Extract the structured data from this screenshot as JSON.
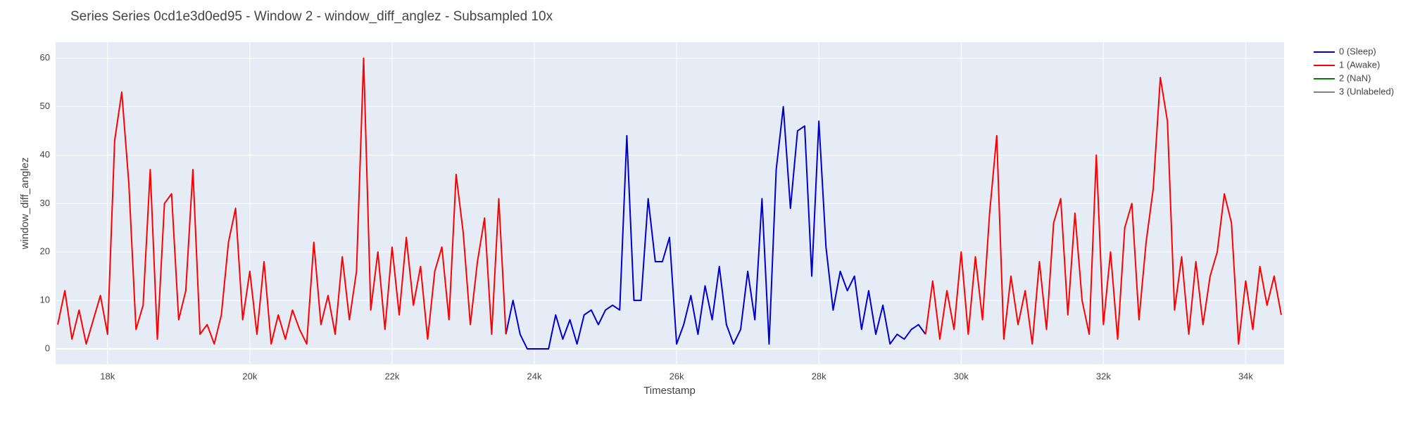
{
  "chart_data": {
    "type": "line",
    "title": "Series Series 0cd1e3d0ed95 - Window 2 - window_diff_anglez - Subsampled 10x",
    "xlabel": "Timestamp",
    "ylabel": "window_diff_anglez",
    "x": [
      17300,
      17400,
      17500,
      17600,
      17700,
      17800,
      17900,
      18000,
      18100,
      18200,
      18300,
      18400,
      18500,
      18600,
      18700,
      18800,
      18900,
      19000,
      19100,
      19200,
      19300,
      19400,
      19500,
      19600,
      19700,
      19800,
      19900,
      20000,
      20100,
      20200,
      20300,
      20400,
      20500,
      20600,
      20700,
      20800,
      20900,
      21000,
      21100,
      21200,
      21300,
      21400,
      21500,
      21600,
      21700,
      21800,
      21900,
      22000,
      22100,
      22200,
      22300,
      22400,
      22500,
      22600,
      22700,
      22800,
      22900,
      23000,
      23100,
      23200,
      23300,
      23400,
      23500,
      23600,
      23700,
      23800,
      23900,
      24000,
      24100,
      24200,
      24300,
      24400,
      24500,
      24600,
      24700,
      24800,
      24900,
      25000,
      25100,
      25200,
      25300,
      25400,
      25500,
      25600,
      25700,
      25800,
      25900,
      26000,
      26100,
      26200,
      26300,
      26400,
      26500,
      26600,
      26700,
      26800,
      26900,
      27000,
      27100,
      27200,
      27300,
      27400,
      27500,
      27600,
      27700,
      27800,
      27900,
      28000,
      28100,
      28200,
      28300,
      28400,
      28500,
      28600,
      28700,
      28800,
      28900,
      29000,
      29100,
      29200,
      29300,
      29400,
      29500,
      29600,
      29700,
      29800,
      29900,
      30000,
      30100,
      30200,
      30300,
      30400,
      30500,
      30600,
      30700,
      30800,
      30900,
      31000,
      31100,
      31200,
      31300,
      31400,
      31500,
      31600,
      31700,
      31800,
      31900,
      32000,
      32100,
      32200,
      32300,
      32400,
      32500,
      32600,
      32700,
      32800,
      32900,
      33000,
      33100,
      33200,
      33300,
      33400,
      33500,
      33600,
      33700,
      33800,
      33900,
      34000,
      34100,
      34200,
      34300,
      34400,
      34500
    ],
    "series": [
      {
        "name": "0 (Sleep)",
        "color": "#0000cc",
        "values": [
          null,
          null,
          null,
          null,
          null,
          null,
          null,
          null,
          null,
          null,
          null,
          null,
          null,
          null,
          null,
          null,
          null,
          null,
          null,
          null,
          null,
          null,
          null,
          null,
          null,
          null,
          null,
          null,
          null,
          null,
          null,
          null,
          null,
          null,
          null,
          null,
          null,
          null,
          null,
          null,
          null,
          null,
          null,
          null,
          null,
          null,
          null,
          null,
          null,
          null,
          null,
          null,
          null,
          null,
          null,
          null,
          null,
          null,
          null,
          null,
          null,
          null,
          null,
          3,
          10,
          3,
          0,
          0,
          0,
          0,
          7,
          2,
          6,
          1,
          7,
          8,
          5,
          8,
          9,
          8,
          44,
          10,
          10,
          31,
          18,
          18,
          23,
          1,
          5,
          11,
          3,
          13,
          6,
          17,
          5,
          1,
          4,
          16,
          6,
          31,
          1,
          37,
          50,
          29,
          45,
          46,
          15,
          47,
          21,
          8,
          16,
          12,
          15,
          4,
          12,
          3,
          9,
          1,
          3,
          2,
          4,
          5,
          3,
          null,
          null,
          null,
          null,
          null,
          null,
          null,
          null,
          null,
          null,
          null,
          null,
          null,
          null,
          null,
          null,
          null,
          null,
          null,
          null,
          null,
          null,
          null,
          null,
          null,
          null,
          null,
          null,
          null,
          null,
          null,
          null,
          null,
          null,
          null,
          null,
          null,
          null,
          null,
          null,
          null,
          null,
          null,
          null,
          null,
          null,
          null,
          null,
          null,
          null
        ]
      },
      {
        "name": "1 (Awake)",
        "color": "#ff0000",
        "values": [
          5,
          12,
          2,
          8,
          1,
          6,
          11,
          3,
          43,
          53,
          34,
          4,
          9,
          37,
          2,
          30,
          32,
          6,
          12,
          37,
          3,
          5,
          1,
          7,
          22,
          29,
          6,
          16,
          3,
          18,
          1,
          7,
          2,
          8,
          4,
          1,
          22,
          5,
          11,
          3,
          19,
          6,
          16,
          60,
          8,
          20,
          4,
          21,
          7,
          23,
          9,
          17,
          2,
          16,
          21,
          6,
          36,
          24,
          5,
          18,
          27,
          3,
          31,
          3,
          null,
          null,
          null,
          null,
          null,
          null,
          null,
          null,
          null,
          null,
          null,
          null,
          null,
          null,
          null,
          null,
          null,
          null,
          null,
          null,
          null,
          null,
          null,
          null,
          null,
          null,
          null,
          null,
          null,
          null,
          null,
          null,
          null,
          null,
          null,
          null,
          null,
          null,
          null,
          null,
          null,
          null,
          null,
          null,
          null,
          null,
          null,
          null,
          null,
          null,
          null,
          null,
          null,
          null,
          null,
          null,
          null,
          null,
          3,
          14,
          2,
          12,
          4,
          20,
          3,
          19,
          6,
          28,
          44,
          2,
          15,
          5,
          12,
          1,
          18,
          4,
          26,
          31,
          7,
          28,
          10,
          3,
          40,
          5,
          20,
          2,
          25,
          30,
          6,
          22,
          33,
          56,
          47,
          8,
          19,
          3,
          18,
          5,
          15,
          20,
          32,
          26,
          1,
          14,
          4,
          17,
          9,
          15,
          7
        ]
      },
      {
        "name": "2 (NaN)",
        "color": "#008000"
      },
      {
        "name": "3 (Unlabeled)",
        "color": "#808080"
      }
    ],
    "xlim": [
      17270,
      34540
    ],
    "ylim": [
      -3.2,
      63.3
    ],
    "xticks": [
      {
        "value": 18000,
        "label": "18k"
      },
      {
        "value": 20000,
        "label": "20k"
      },
      {
        "value": 22000,
        "label": "22k"
      },
      {
        "value": 24000,
        "label": "24k"
      },
      {
        "value": 26000,
        "label": "26k"
      },
      {
        "value": 28000,
        "label": "28k"
      },
      {
        "value": 30000,
        "label": "30k"
      },
      {
        "value": 32000,
        "label": "32k"
      },
      {
        "value": 34000,
        "label": "34k"
      }
    ],
    "yticks": [
      0,
      10,
      20,
      30,
      40,
      50,
      60
    ],
    "grid": true,
    "legend": "right"
  }
}
